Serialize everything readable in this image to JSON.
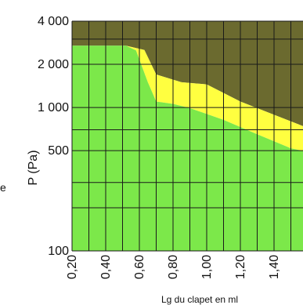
{
  "chart_data": {
    "type": "area",
    "xlabel": "Lg du clapet en ml",
    "ylabel": "P (Pa)",
    "x_scale": "linear",
    "y_scale": "log",
    "xlim": [
      0.2,
      1.6
    ],
    "ylim": [
      100,
      4000
    ],
    "x_ticks": [
      {
        "value": 0.2,
        "label": "0,20"
      },
      {
        "value": 0.4,
        "label": "0,40"
      },
      {
        "value": 0.6,
        "label": "0,60"
      },
      {
        "value": 0.8,
        "label": "0,80"
      },
      {
        "value": 1.0,
        "label": "1,00"
      },
      {
        "value": 1.2,
        "label": "1,20"
      },
      {
        "value": 1.4,
        "label": "1,40"
      }
    ],
    "y_ticks": [
      {
        "value": 4000,
        "label": "4 000"
      },
      {
        "value": 2000,
        "label": "2 000"
      },
      {
        "value": 1000,
        "label": "1 000"
      },
      {
        "value": 500,
        "label": "500"
      },
      {
        "value": 100,
        "label": "100"
      }
    ],
    "x_gridlines": [
      0.2,
      0.3,
      0.4,
      0.5,
      0.6,
      0.7,
      0.8,
      0.9,
      1.0,
      1.1,
      1.2,
      1.3,
      1.4,
      1.5,
      1.6
    ],
    "y_gridlines": [
      100,
      200,
      300,
      500,
      700,
      1000,
      2000,
      3000,
      4000
    ],
    "grid": true,
    "regions": [
      {
        "color": "#6b6a2f",
        "boundary_top": [
          [
            0.2,
            4000
          ],
          [
            1.6,
            4000
          ]
        ],
        "boundary_bottom": [
          [
            0.2,
            2700
          ],
          [
            0.52,
            2700
          ],
          [
            0.63,
            2520
          ],
          [
            0.7,
            1700
          ],
          [
            0.85,
            1500
          ],
          [
            1.0,
            1450
          ],
          [
            1.2,
            1100
          ],
          [
            1.4,
            890
          ],
          [
            1.6,
            720
          ]
        ]
      },
      {
        "color": "#ffff40",
        "boundary_top": [
          [
            0.52,
            2700
          ],
          [
            0.63,
            2520
          ],
          [
            0.7,
            1700
          ],
          [
            0.85,
            1500
          ],
          [
            1.0,
            1450
          ],
          [
            1.2,
            1100
          ],
          [
            1.4,
            890
          ],
          [
            1.6,
            720
          ]
        ],
        "boundary_bottom": [
          [
            0.52,
            2700
          ],
          [
            0.58,
            2500
          ],
          [
            0.65,
            1500
          ],
          [
            0.7,
            1100
          ],
          [
            0.8,
            1060
          ],
          [
            0.9,
            990
          ],
          [
            1.1,
            820
          ],
          [
            1.3,
            650
          ],
          [
            1.5,
            520
          ],
          [
            1.6,
            490
          ]
        ]
      },
      {
        "color": "#7ce84a",
        "boundary_top": [
          [
            0.2,
            2700
          ],
          [
            0.52,
            2700
          ],
          [
            0.58,
            2500
          ],
          [
            0.65,
            1500
          ],
          [
            0.7,
            1100
          ],
          [
            0.8,
            1060
          ],
          [
            0.9,
            990
          ],
          [
            1.1,
            820
          ],
          [
            1.3,
            650
          ],
          [
            1.5,
            520
          ],
          [
            1.6,
            490
          ]
        ],
        "boundary_bottom": [
          [
            0.2,
            100
          ],
          [
            1.6,
            100
          ]
        ]
      }
    ],
    "cut_off_text": "e"
  }
}
